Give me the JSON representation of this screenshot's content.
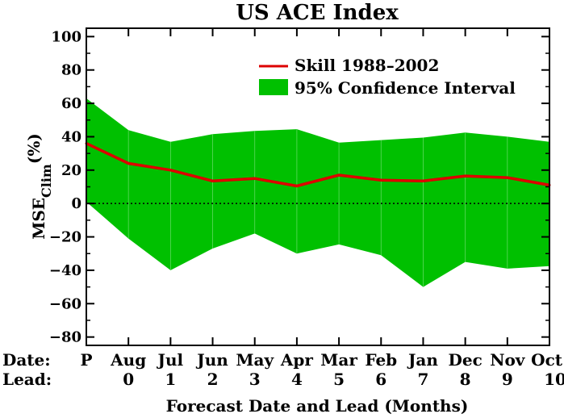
{
  "chart_data": {
    "type": "line",
    "title": "US ACE Index",
    "ylabel_main": "MSE",
    "ylabel_sub": "Clim",
    "ylabel_unit": "(%)",
    "xlabel": "Forecast Date and Lead (Months)",
    "row_label_date": "Date:",
    "row_label_lead": "Lead:",
    "ylim": [
      -85,
      105
    ],
    "yticks": [
      100,
      80,
      60,
      40,
      20,
      0,
      -20,
      -40,
      -60,
      -80
    ],
    "ytick_labels": [
      "100",
      "80",
      "60",
      "40",
      "20",
      "0",
      "−20",
      "−40",
      "−60",
      "−80"
    ],
    "categories": [
      "P",
      "Aug",
      "Jul",
      "Jun",
      "May",
      "Apr",
      "Mar",
      "Feb",
      "Jan",
      "Dec",
      "Nov",
      "Oct"
    ],
    "leads": [
      "",
      "0",
      "1",
      "2",
      "3",
      "4",
      "5",
      "6",
      "7",
      "8",
      "9",
      "10"
    ],
    "series": [
      {
        "name": "Skill 1988–2002",
        "type": "line",
        "color": "#dd0000",
        "values": [
          36,
          24,
          20,
          13.5,
          15,
          10.5,
          17,
          14,
          13.5,
          16.5,
          15.5,
          11
        ]
      },
      {
        "name": "95% Confidence Interval",
        "type": "band",
        "color": "#00c000",
        "upper": [
          63,
          44,
          37,
          41.5,
          43.5,
          44.5,
          36.5,
          38,
          39.5,
          42.5,
          40,
          37
        ],
        "lower": [
          1,
          -21,
          -40,
          -27,
          -18,
          -30,
          -24.5,
          -31,
          -50,
          -35,
          -39,
          -37.5
        ]
      }
    ],
    "reference_line": {
      "y": 0,
      "style": "dotted"
    },
    "legend_position": "top-right",
    "grid": false
  }
}
